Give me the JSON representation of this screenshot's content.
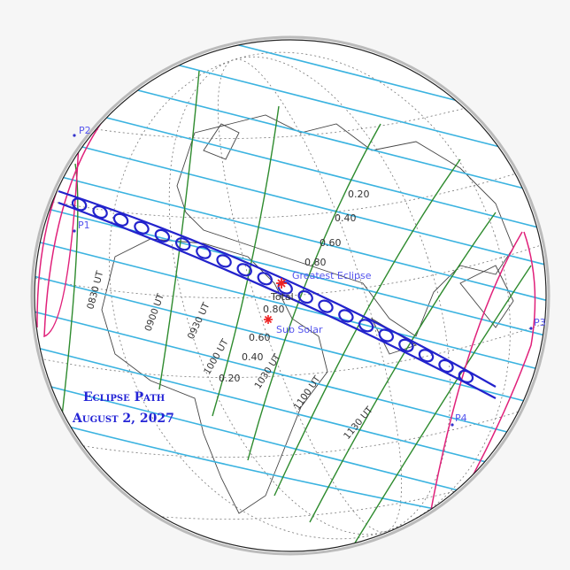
{
  "title": {
    "line1": "Eclipse Path",
    "line2": "August 2, 2027"
  },
  "markers": {
    "greatest_eclipse": "Greatest Eclipse",
    "total": "Total",
    "sub_solar": "Sub Solar"
  },
  "contact_points": [
    "P1",
    "P2",
    "P3",
    "P4"
  ],
  "time_labels": [
    "0830 UT",
    "0900 UT",
    "0930 UT",
    "1000 UT",
    "1030 UT",
    "1100 UT",
    "1130 UT"
  ],
  "magnitude_labels_south": [
    "0.80",
    "0.60",
    "0.40",
    "0.20"
  ],
  "magnitude_labels_north": [
    "0.20",
    "0.40",
    "0.60",
    "0.80"
  ],
  "colors": {
    "magnitude_lines": "#3bb3e0",
    "time_lines": "#2e8b2e",
    "eclipse_path": "#2222cc",
    "penumbra_limits": "#e0207a",
    "markers": "#ee2222",
    "labels": "#5555ee"
  }
}
